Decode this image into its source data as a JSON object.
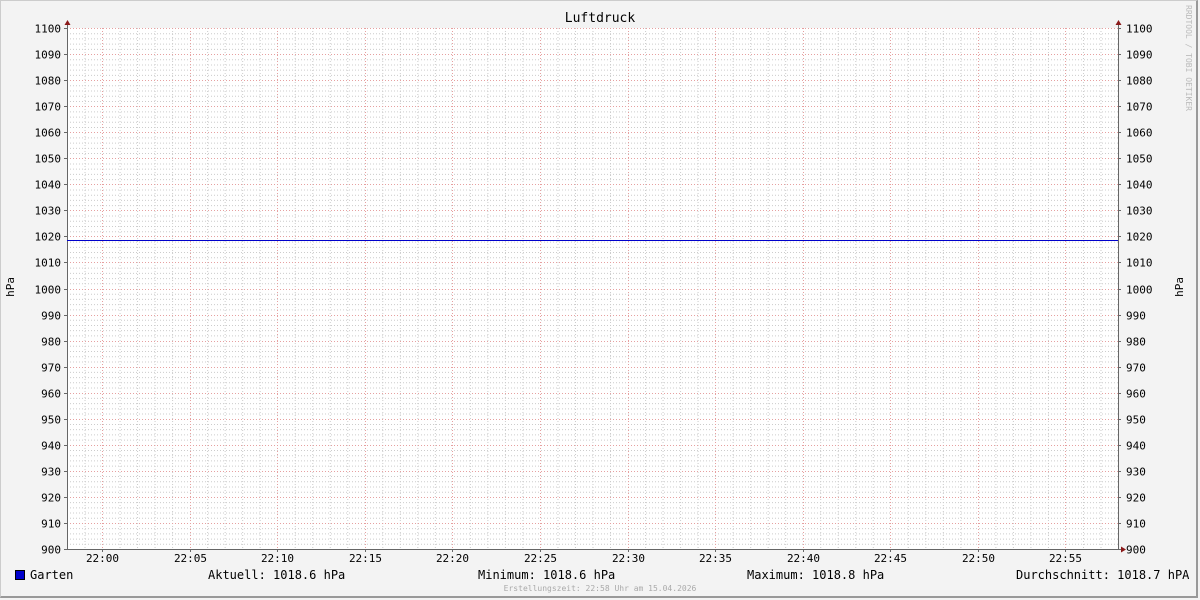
{
  "chart_data": {
    "type": "line",
    "title": "Luftdruck",
    "ylabel": "hPa",
    "ylim": [
      900,
      1100
    ],
    "y_ticks": [
      900,
      910,
      920,
      930,
      940,
      950,
      960,
      970,
      980,
      990,
      1000,
      1010,
      1020,
      1030,
      1040,
      1050,
      1060,
      1070,
      1080,
      1090,
      1100
    ],
    "xlim": [
      "21:58",
      "22:58"
    ],
    "x_ticks": [
      "22:00",
      "22:05",
      "22:10",
      "22:15",
      "22:20",
      "22:25",
      "22:30",
      "22:35",
      "22:40",
      "22:45",
      "22:50",
      "22:55"
    ],
    "grid": true,
    "series": [
      {
        "name": "Garten",
        "color": "#0000cc",
        "x": [
          "21:58",
          "22:58"
        ],
        "y": [
          1018.7,
          1018.7
        ]
      }
    ],
    "legend_placement": "bottom",
    "stats": {
      "current": "Aktuell: 1018.6 hPa",
      "minimum": "Minimum: 1018.6 hPa",
      "maximum": "Maximum: 1018.8 hPa",
      "average": "Durchschnitt: 1018.7 hPA"
    },
    "footer": "Erstellungszeit: 22:58 Uhr am 15.04.2026",
    "watermark": "RRDTOOL / TOBI OETIKER"
  }
}
